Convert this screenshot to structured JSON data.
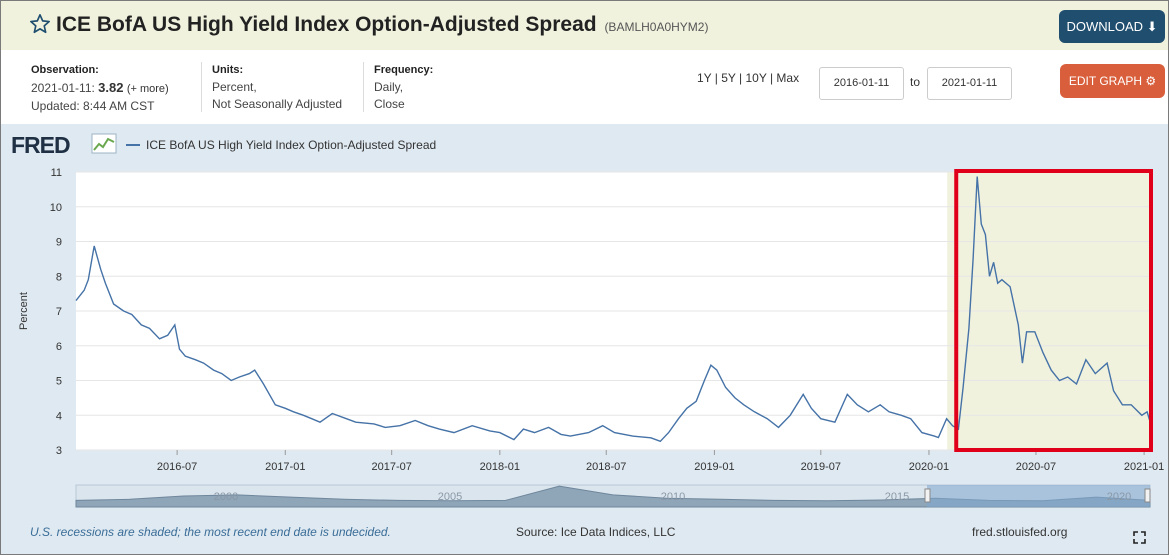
{
  "header": {
    "title": "ICE BofA US High Yield Index Option-Adjusted Spread",
    "series_id": "(BAMLH0A0HYM2)",
    "download_label": "DOWNLOAD ⬇"
  },
  "info": {
    "observation_label": "Observation:",
    "observation_date": "2021-01-11:",
    "observation_value": "3.82",
    "more_label": "(+ more)",
    "updated": "Updated: 8:44 AM CST",
    "units_label": "Units:",
    "units_line1": "Percent,",
    "units_line2": "Not Seasonally Adjusted",
    "frequency_label": "Frequency:",
    "frequency_line1": "Daily,",
    "frequency_line2": "Close",
    "ranges": "1Y | 5Y | 10Y | Max",
    "start_date": "2016-01-11",
    "to_label": "to",
    "end_date": "2021-01-11",
    "edit_label": "EDIT GRAPH ⚙"
  },
  "footer": {
    "note": "U.S. recessions are shaded; the most recent end date is undecided.",
    "source": "Source: Ice Data Indices, LLC",
    "url": "fred.stlouisfed.org"
  },
  "colors": {
    "line": "#4572a7",
    "recession": "#f1f2de",
    "highlight": "#e0001a",
    "panel": "#dfe9f1"
  },
  "chart_data": {
    "type": "line",
    "brand": "FRED",
    "legend": "ICE BofA US High Yield Index Option-Adjusted Spread",
    "ylabel": "Percent",
    "ylim": [
      3,
      11
    ],
    "yticks": [
      3,
      4,
      5,
      6,
      7,
      8,
      9,
      10,
      11
    ],
    "xlim": [
      "2016-01-11",
      "2021-01-11"
    ],
    "xticks": [
      "2016-07",
      "2017-01",
      "2017-07",
      "2018-01",
      "2018-07",
      "2019-01",
      "2019-07",
      "2020-01",
      "2020-07",
      "2021-01"
    ],
    "recession": [
      "2020-02-01",
      "2021-01-11"
    ],
    "highlight_box": [
      "2020-03-01",
      "2021-01-11"
    ],
    "navigator_labels": [
      "2000",
      "2005",
      "2010",
      "2015",
      "2020"
    ],
    "series": [
      {
        "name": "ICE BofA US High Yield Index Option-Adjusted Spread",
        "points": [
          [
            "2016-01-11",
            7.3
          ],
          [
            "2016-01-25",
            7.6
          ],
          [
            "2016-02-01",
            7.9
          ],
          [
            "2016-02-11",
            8.87
          ],
          [
            "2016-02-22",
            8.2
          ],
          [
            "2016-03-01",
            7.8
          ],
          [
            "2016-03-15",
            7.2
          ],
          [
            "2016-04-01",
            7.0
          ],
          [
            "2016-04-15",
            6.9
          ],
          [
            "2016-05-01",
            6.6
          ],
          [
            "2016-05-15",
            6.5
          ],
          [
            "2016-06-01",
            6.2
          ],
          [
            "2016-06-15",
            6.3
          ],
          [
            "2016-06-27",
            6.6
          ],
          [
            "2016-07-05",
            5.9
          ],
          [
            "2016-07-15",
            5.7
          ],
          [
            "2016-08-01",
            5.6
          ],
          [
            "2016-08-15",
            5.5
          ],
          [
            "2016-09-01",
            5.3
          ],
          [
            "2016-09-15",
            5.2
          ],
          [
            "2016-10-01",
            5.0
          ],
          [
            "2016-10-15",
            5.1
          ],
          [
            "2016-11-01",
            5.2
          ],
          [
            "2016-11-10",
            5.3
          ],
          [
            "2016-11-25",
            4.9
          ],
          [
            "2016-12-15",
            4.3
          ],
          [
            "2017-01-01",
            4.2
          ],
          [
            "2017-01-15",
            4.1
          ],
          [
            "2017-02-01",
            4.0
          ],
          [
            "2017-02-15",
            3.9
          ],
          [
            "2017-03-01",
            3.8
          ],
          [
            "2017-03-22",
            4.05
          ],
          [
            "2017-04-15",
            3.9
          ],
          [
            "2017-05-01",
            3.8
          ],
          [
            "2017-06-01",
            3.75
          ],
          [
            "2017-06-20",
            3.65
          ],
          [
            "2017-07-15",
            3.7
          ],
          [
            "2017-08-10",
            3.85
          ],
          [
            "2017-09-01",
            3.7
          ],
          [
            "2017-09-20",
            3.6
          ],
          [
            "2017-10-15",
            3.5
          ],
          [
            "2017-11-15",
            3.7
          ],
          [
            "2017-12-15",
            3.55
          ],
          [
            "2018-01-01",
            3.5
          ],
          [
            "2018-01-25",
            3.3
          ],
          [
            "2018-02-10",
            3.6
          ],
          [
            "2018-03-01",
            3.5
          ],
          [
            "2018-03-25",
            3.65
          ],
          [
            "2018-04-15",
            3.45
          ],
          [
            "2018-05-01",
            3.4
          ],
          [
            "2018-06-01",
            3.5
          ],
          [
            "2018-06-25",
            3.7
          ],
          [
            "2018-07-15",
            3.5
          ],
          [
            "2018-08-15",
            3.4
          ],
          [
            "2018-09-15",
            3.35
          ],
          [
            "2018-10-01",
            3.25
          ],
          [
            "2018-10-15",
            3.5
          ],
          [
            "2018-11-01",
            3.9
          ],
          [
            "2018-11-15",
            4.2
          ],
          [
            "2018-12-01",
            4.4
          ],
          [
            "2018-12-15",
            5.0
          ],
          [
            "2018-12-26",
            5.44
          ],
          [
            "2019-01-05",
            5.3
          ],
          [
            "2019-01-20",
            4.8
          ],
          [
            "2019-02-05",
            4.5
          ],
          [
            "2019-02-20",
            4.3
          ],
          [
            "2019-03-10",
            4.1
          ],
          [
            "2019-04-01",
            3.9
          ],
          [
            "2019-04-20",
            3.65
          ],
          [
            "2019-05-10",
            4.0
          ],
          [
            "2019-06-01",
            4.6
          ],
          [
            "2019-06-15",
            4.2
          ],
          [
            "2019-07-01",
            3.9
          ],
          [
            "2019-07-25",
            3.8
          ],
          [
            "2019-08-15",
            4.6
          ],
          [
            "2019-09-01",
            4.3
          ],
          [
            "2019-09-20",
            4.1
          ],
          [
            "2019-10-10",
            4.3
          ],
          [
            "2019-10-25",
            4.1
          ],
          [
            "2019-11-15",
            4.0
          ],
          [
            "2019-12-01",
            3.9
          ],
          [
            "2019-12-20",
            3.5
          ],
          [
            "2020-01-10",
            3.4
          ],
          [
            "2020-01-17",
            3.36
          ],
          [
            "2020-01-31",
            3.9
          ],
          [
            "2020-02-10",
            3.7
          ],
          [
            "2020-02-20",
            3.6
          ],
          [
            "2020-02-28",
            4.8
          ],
          [
            "2020-03-09",
            6.5
          ],
          [
            "2020-03-16",
            8.5
          ],
          [
            "2020-03-23",
            10.87
          ],
          [
            "2020-03-30",
            9.5
          ],
          [
            "2020-04-06",
            9.2
          ],
          [
            "2020-04-13",
            8.0
          ],
          [
            "2020-04-20",
            8.4
          ],
          [
            "2020-04-27",
            7.8
          ],
          [
            "2020-05-04",
            7.9
          ],
          [
            "2020-05-18",
            7.7
          ],
          [
            "2020-06-01",
            6.6
          ],
          [
            "2020-06-08",
            5.5
          ],
          [
            "2020-06-15",
            6.4
          ],
          [
            "2020-06-29",
            6.4
          ],
          [
            "2020-07-13",
            5.8
          ],
          [
            "2020-07-27",
            5.3
          ],
          [
            "2020-08-10",
            5.0
          ],
          [
            "2020-08-24",
            5.1
          ],
          [
            "2020-09-08",
            4.9
          ],
          [
            "2020-09-24",
            5.6
          ],
          [
            "2020-10-10",
            5.2
          ],
          [
            "2020-10-30",
            5.5
          ],
          [
            "2020-11-10",
            4.7
          ],
          [
            "2020-11-25",
            4.3
          ],
          [
            "2020-12-10",
            4.3
          ],
          [
            "2020-12-28",
            4.0
          ],
          [
            "2021-01-06",
            4.1
          ],
          [
            "2021-01-11",
            3.82
          ]
        ]
      }
    ]
  }
}
